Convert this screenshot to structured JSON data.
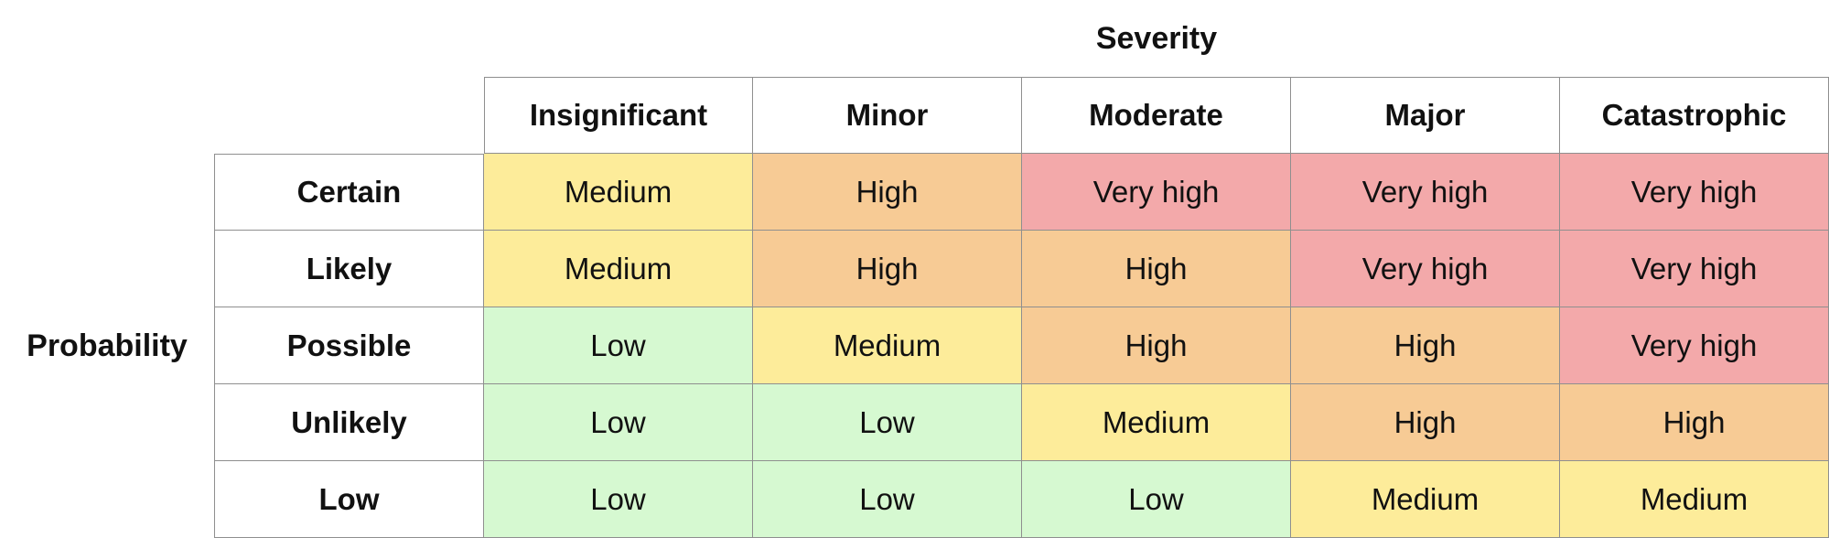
{
  "matrix": {
    "severity_label": "Severity",
    "probability_label": "Probability",
    "severity_levels": [
      "Insignificant",
      "Minor",
      "Moderate",
      "Major",
      "Catastrophic"
    ],
    "rows": [
      {
        "probability": "Certain",
        "cells": [
          "Medium",
          "High",
          "Very high",
          "Very high",
          "Very high"
        ]
      },
      {
        "probability": "Likely",
        "cells": [
          "Medium",
          "High",
          "High",
          "Very high",
          "Very high"
        ]
      },
      {
        "probability": "Possible",
        "cells": [
          "Low",
          "Medium",
          "High",
          "High",
          "Very high"
        ]
      },
      {
        "probability": "Unlikely",
        "cells": [
          "Low",
          "Low",
          "Medium",
          "High",
          "High"
        ]
      },
      {
        "probability": "Low",
        "cells": [
          "Low",
          "Low",
          "Low",
          "Medium",
          "Medium"
        ]
      }
    ]
  },
  "level_colors": {
    "Low": "#d6f9d1",
    "Medium": "#fdec9a",
    "High": "#f7cb95",
    "Very high": "#f3a9aa"
  }
}
